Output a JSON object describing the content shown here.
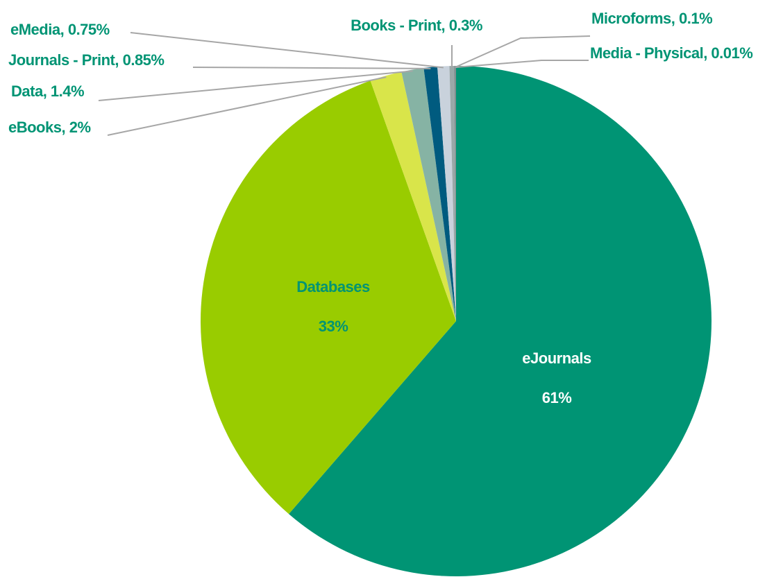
{
  "chart_data": {
    "type": "pie",
    "categories": [
      "eJournals",
      "Databases",
      "eBooks",
      "Data",
      "Journals - Print",
      "eMedia",
      "Books - Print",
      "Microforms",
      "Media - Physical"
    ],
    "values": [
      61,
      33,
      2,
      1.4,
      0.85,
      0.75,
      0.3,
      0.1,
      0.01
    ],
    "value_labels": [
      "61%",
      "33%",
      "2%",
      "1.4%",
      "0.85%",
      "0.75%",
      "0.3%",
      "0.1%",
      "0.01%"
    ],
    "label_separator": ", ",
    "colors": [
      "#009474",
      "#99cc00",
      "#d9e54a",
      "#86b3a4",
      "#005b7f",
      "#c9d2dc",
      "#9aa8a8",
      "#7c8c8c",
      "#5a6a6a"
    ],
    "label_color": "#009474"
  }
}
